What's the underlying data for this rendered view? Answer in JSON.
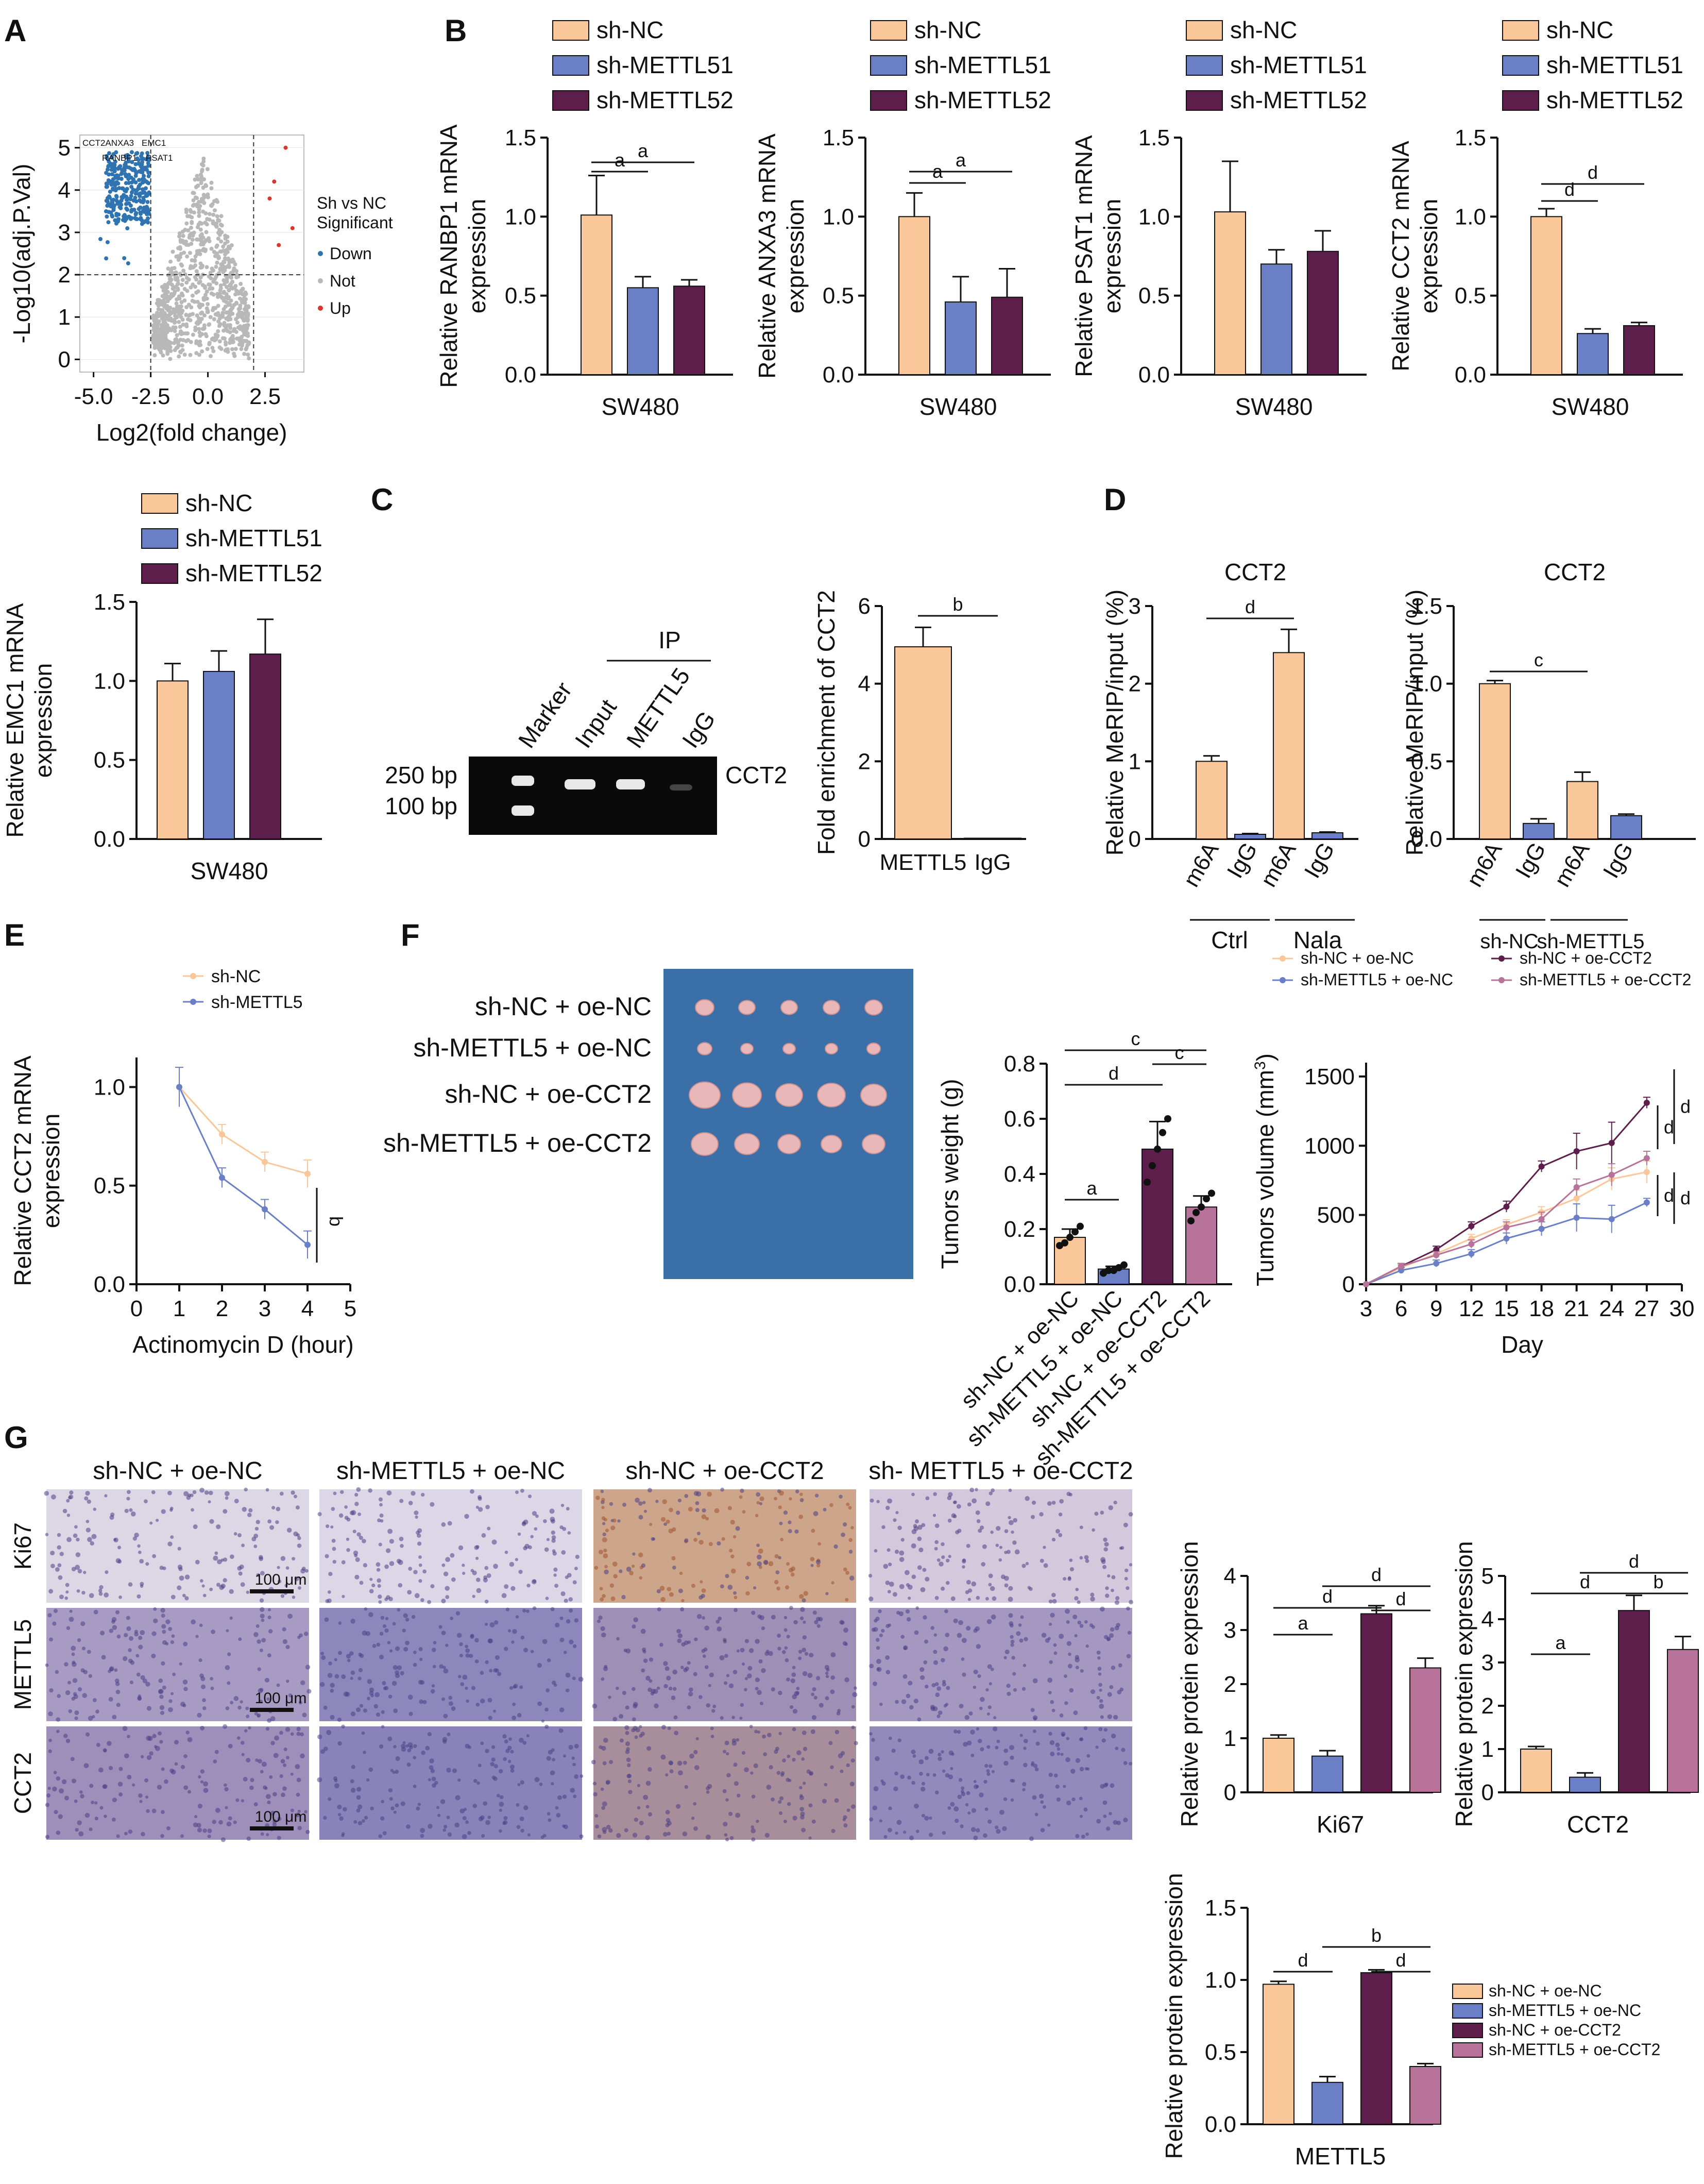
{
  "panel_letters": [
    "A",
    "B",
    "C",
    "D",
    "E",
    "F",
    "G"
  ],
  "colors": {
    "shNC": "#F9C79A",
    "shM1": "#6A7FC6",
    "shM2": "#5E1E4B",
    "oeNC_sh": "#6A7FC6",
    "oeCCT2": "#5E1E4B",
    "shM_oeCCT2": "#B8739A",
    "volcano_down": "#2F73B0",
    "volcano_not": "#B8B8B8",
    "volcano_up": "#D6382E"
  },
  "group_legend_3": [
    "sh-NC",
    "sh-METTL51",
    "sh-METTL52"
  ],
  "group_legend_4": [
    "sh-NC + oe-NC",
    "sh-METTL5 + oe-NC",
    "sh-NC + oe-CCT2",
    "sh-METTL5 + oe-CCT2"
  ],
  "chart_data": [
    {
      "id": "A",
      "type": "scatter",
      "xlabel": "Log2(fold change)",
      "ylabel": "-Log10(adj.P.Val)",
      "xticks": [
        "-5.0",
        "-2.5",
        "0.0",
        "2.5"
      ],
      "yticks": [
        "0",
        "1",
        "2",
        "3",
        "4",
        "5"
      ],
      "xlim": [
        -5.6,
        4.2
      ],
      "ylim": [
        -0.3,
        5.3
      ],
      "legend_title": [
        "Sh vs NC",
        "Significant"
      ],
      "legend": [
        "Down",
        "Not",
        "Up"
      ],
      "gene_labels": [
        "CCT2ANXA3",
        "EMC1",
        "RANBP1",
        "PSAT1"
      ]
    },
    {
      "id": "B1",
      "type": "bar",
      "ylabel": [
        "Relative RANBP1 mRNA",
        "expression"
      ],
      "xlabel": "SW480",
      "yticks": [
        "0.0",
        "0.5",
        "1.0",
        "1.5"
      ],
      "ylim": [
        0,
        1.5
      ],
      "values": [
        1.01,
        0.55,
        0.56
      ],
      "errors": [
        0.25,
        0.07,
        0.04
      ],
      "sig": [
        {
          "a": 0,
          "b": 1,
          "label": "a"
        },
        {
          "a": 0,
          "b": 2,
          "label": "a"
        }
      ]
    },
    {
      "id": "B2",
      "type": "bar",
      "ylabel": [
        "Relative ANXA3 mRNA",
        "expression"
      ],
      "xlabel": "SW480",
      "yticks": [
        "0.0",
        "0.5",
        "1.0",
        "1.5"
      ],
      "ylim": [
        0,
        1.5
      ],
      "values": [
        1.0,
        0.46,
        0.49
      ],
      "errors": [
        0.15,
        0.16,
        0.18
      ],
      "sig": [
        {
          "a": 0,
          "b": 1,
          "label": "a"
        },
        {
          "a": 0,
          "b": 2,
          "label": "a"
        }
      ]
    },
    {
      "id": "B3",
      "type": "bar",
      "ylabel": [
        "Relative PSAT1 mRNA",
        "expression"
      ],
      "xlabel": "SW480",
      "yticks": [
        "0.0",
        "0.5",
        "1.0",
        "1.5"
      ],
      "ylim": [
        0,
        1.5
      ],
      "values": [
        1.03,
        0.7,
        0.78
      ],
      "errors": [
        0.32,
        0.09,
        0.13
      ],
      "sig": []
    },
    {
      "id": "B4",
      "type": "bar",
      "ylabel": [
        "Relative CCT2 mRNA",
        "expression"
      ],
      "xlabel": "SW480",
      "yticks": [
        "0.0",
        "0.5",
        "1.0",
        "1.5"
      ],
      "ylim": [
        0,
        1.5
      ],
      "values": [
        1.0,
        0.26,
        0.31
      ],
      "errors": [
        0.05,
        0.03,
        0.02
      ],
      "sig": [
        {
          "a": 0,
          "b": 1,
          "label": "d"
        },
        {
          "a": 0,
          "b": 2,
          "label": "d"
        }
      ]
    },
    {
      "id": "B5",
      "type": "bar",
      "ylabel": [
        "Relative EMC1 mRNA",
        "expression"
      ],
      "xlabel": "SW480",
      "yticks": [
        "0.0",
        "0.5",
        "1.0",
        "1.5"
      ],
      "ylim": [
        0,
        1.5
      ],
      "values": [
        1.0,
        1.06,
        1.17
      ],
      "errors": [
        0.11,
        0.13,
        0.22
      ],
      "sig": []
    },
    {
      "id": "C",
      "type": "bar",
      "ylabel": "Fold enrichment of CCT2",
      "categories": [
        "METTL5",
        "IgG"
      ],
      "yticks": [
        "0",
        "2",
        "4",
        "6"
      ],
      "ylim": [
        0,
        6
      ],
      "values": [
        4.95,
        0.02
      ],
      "errors": [
        0.5,
        0.0
      ],
      "sig": [
        {
          "a": 0,
          "b": 1,
          "label": "b"
        }
      ]
    },
    {
      "id": "D1",
      "type": "bar",
      "title": "CCT2",
      "ylabel": "Relative MeRIP/input (%)",
      "categories": [
        "m6A",
        "IgG",
        "m6A",
        "IgG"
      ],
      "groups": [
        "Ctrl",
        "Nala"
      ],
      "yticks": [
        "0",
        "1",
        "2",
        "3"
      ],
      "ylim": [
        0,
        3
      ],
      "values": [
        1.0,
        0.06,
        2.4,
        0.08
      ],
      "errors": [
        0.07,
        0.01,
        0.3,
        0.01
      ],
      "sig": [
        {
          "a": 0,
          "b": 2,
          "label": "d"
        }
      ]
    },
    {
      "id": "D2",
      "type": "bar",
      "title": "CCT2",
      "ylabel": "Relative MeRIP/input (%)",
      "categories": [
        "m6A",
        "IgG",
        "m6A",
        "IgG"
      ],
      "groups": [
        "sh-NC",
        "sh-METTL5"
      ],
      "yticks": [
        "0.0",
        "0.5",
        "1.0",
        "1.5"
      ],
      "ylim": [
        0,
        1.5
      ],
      "values": [
        1.0,
        0.1,
        0.37,
        0.15
      ],
      "errors": [
        0.02,
        0.03,
        0.06,
        0.01
      ],
      "sig": [
        {
          "a": 0,
          "b": 2,
          "label": "c"
        }
      ]
    },
    {
      "id": "E",
      "type": "line",
      "ylabel": [
        "Relative CCT2 mRNA",
        "expression"
      ],
      "xlabel": "Actinomycin D (hour)",
      "xticks": [
        "0",
        "1",
        "2",
        "3",
        "4",
        "5"
      ],
      "yticks": [
        "0.0",
        "0.5",
        "1.0"
      ],
      "xlim": [
        0,
        5
      ],
      "ylim": [
        0,
        1.15
      ],
      "series": [
        {
          "name": "sh-NC",
          "x": [
            1,
            2,
            3,
            4
          ],
          "y": [
            1.0,
            0.76,
            0.62,
            0.56
          ],
          "err": [
            0.1,
            0.05,
            0.05,
            0.07
          ]
        },
        {
          "name": "sh-METTL5",
          "x": [
            1,
            2,
            3,
            4
          ],
          "y": [
            1.0,
            0.54,
            0.38,
            0.2
          ],
          "err": [
            0.1,
            0.05,
            0.05,
            0.07
          ]
        }
      ],
      "sig": "b"
    },
    {
      "id": "F_image_labels",
      "rows": [
        "sh-NC + oe-NC",
        "sh-METTL5 + oe-NC",
        "sh-NC + oe-CCT2",
        "sh-METTL5 + oe-CCT2"
      ]
    },
    {
      "id": "F1",
      "type": "bar",
      "ylabel": "Tumors weight (g)",
      "categories": [
        "sh-NC + oe-NC",
        "sh-METTL5 + oe-NC",
        "sh-NC + oe-CCT2",
        "sh-METTL5 + oe-CCT2"
      ],
      "yticks": [
        "0.0",
        "0.2",
        "0.4",
        "0.6",
        "0.8"
      ],
      "ylim": [
        0,
        0.8
      ],
      "values": [
        0.17,
        0.055,
        0.49,
        0.28
      ],
      "errors": [
        0.03,
        0.01,
        0.1,
        0.04
      ],
      "points": [
        [
          0.14,
          0.15,
          0.17,
          0.19,
          0.21
        ],
        [
          0.04,
          0.05,
          0.05,
          0.06,
          0.07
        ],
        [
          0.37,
          0.43,
          0.49,
          0.55,
          0.6
        ],
        [
          0.23,
          0.26,
          0.28,
          0.31,
          0.33
        ]
      ],
      "sig": [
        {
          "a": 0,
          "b": 1,
          "label": "a"
        },
        {
          "a": 0,
          "b": 2,
          "label": "d"
        },
        {
          "a": 2,
          "b": 3,
          "label": "c"
        },
        {
          "a": 0,
          "b": 3,
          "label": "c"
        }
      ]
    },
    {
      "id": "F2",
      "type": "line",
      "ylabel": "Tumors volume (mm3)",
      "xlabel": "Day",
      "xticks": [
        "3",
        "6",
        "9",
        "12",
        "15",
        "18",
        "21",
        "24",
        "27",
        "30"
      ],
      "yticks": [
        "0",
        "500",
        "1000",
        "1500"
      ],
      "xlim": [
        3,
        30
      ],
      "ylim": [
        0,
        1600
      ],
      "series": [
        {
          "name": "sh-NC + oe-NC",
          "x": [
            3,
            6,
            9,
            12,
            15,
            18,
            21,
            24,
            27
          ],
          "y": [
            0,
            120,
            220,
            330,
            430,
            520,
            620,
            760,
            810
          ],
          "err": [
            0,
            20,
            25,
            30,
            35,
            40,
            60,
            80,
            80
          ]
        },
        {
          "name": "sh-METTL5 + oe-NC",
          "x": [
            3,
            6,
            9,
            12,
            15,
            18,
            21,
            24,
            27
          ],
          "y": [
            0,
            100,
            150,
            220,
            330,
            400,
            480,
            470,
            590
          ],
          "err": [
            0,
            20,
            25,
            30,
            40,
            50,
            100,
            100,
            30
          ]
        },
        {
          "name": "sh-NC + oe-CCT2",
          "x": [
            3,
            6,
            9,
            12,
            15,
            18,
            21,
            24,
            27
          ],
          "y": [
            0,
            130,
            250,
            420,
            560,
            850,
            960,
            1020,
            1310
          ],
          "err": [
            0,
            20,
            25,
            30,
            40,
            40,
            130,
            150,
            40
          ]
        },
        {
          "name": "sh-METTL5 + oe-CCT2",
          "x": [
            3,
            6,
            9,
            12,
            15,
            18,
            21,
            24,
            27
          ],
          "y": [
            0,
            130,
            210,
            290,
            410,
            470,
            700,
            790,
            910
          ],
          "err": [
            0,
            20,
            25,
            30,
            40,
            50,
            60,
            80,
            50
          ]
        }
      ],
      "sig": [
        "d",
        "d",
        "d",
        "d"
      ]
    },
    {
      "id": "G_ihc",
      "columns": [
        "sh-NC + oe-NC",
        "sh-METTL5 + oe-NC",
        "sh-NC + oe-CCT2",
        "sh- METTL5 + oe-CCT2"
      ],
      "rows": [
        "Ki67",
        "METTL5",
        "CCT2"
      ],
      "scale": "100 μm"
    },
    {
      "id": "G1",
      "type": "bar",
      "ylabel": "Relative protein expression",
      "xlabel": "Ki67",
      "yticks": [
        "0",
        "1",
        "2",
        "3",
        "4"
      ],
      "ylim": [
        0,
        4
      ],
      "values": [
        1.0,
        0.67,
        3.3,
        2.3
      ],
      "errors": [
        0.06,
        0.1,
        0.15,
        0.18
      ],
      "sig": [
        {
          "a": 0,
          "b": 1,
          "label": "a"
        },
        {
          "a": 0,
          "b": 2,
          "label": "d"
        },
        {
          "a": 2,
          "b": 3,
          "label": "d"
        },
        {
          "a": 1,
          "b": 3,
          "label": "d"
        }
      ]
    },
    {
      "id": "G2",
      "type": "bar",
      "ylabel": "Relative protein expression",
      "xlabel": "CCT2",
      "yticks": [
        "0",
        "1",
        "2",
        "3",
        "4",
        "5"
      ],
      "ylim": [
        0,
        5
      ],
      "values": [
        1.0,
        0.35,
        4.2,
        3.3
      ],
      "errors": [
        0.06,
        0.1,
        0.35,
        0.3
      ],
      "sig": [
        {
          "a": 0,
          "b": 1,
          "label": "a"
        },
        {
          "a": 0,
          "b": 2,
          "label": "d"
        },
        {
          "a": 2,
          "b": 3,
          "label": "b"
        },
        {
          "a": 1,
          "b": 3,
          "label": "d"
        }
      ]
    },
    {
      "id": "G3",
      "type": "bar",
      "ylabel": "Relative protein expression",
      "xlabel": "METTL5",
      "yticks": [
        "0.0",
        "0.5",
        "1.0",
        "1.5"
      ],
      "ylim": [
        0,
        1.5
      ],
      "values": [
        0.97,
        0.29,
        1.05,
        0.4
      ],
      "errors": [
        0.02,
        0.04,
        0.02,
        0.02
      ],
      "sig": [
        {
          "a": 0,
          "b": 1,
          "label": "d"
        },
        {
          "a": 2,
          "b": 3,
          "label": "d"
        },
        {
          "a": 1,
          "b": 3,
          "label": "b"
        }
      ]
    }
  ],
  "gel": {
    "lanes": [
      "Marker",
      "Input",
      "METTL5",
      "IgG"
    ],
    "ip_label": "IP",
    "sizes": [
      "250 bp",
      "100 bp"
    ],
    "band": "CCT2"
  },
  "legend_G": [
    "sh-NC + oe-NC",
    "sh-METTL5 + oe-NC",
    "sh-NC + oe-CCT2",
    "sh-METTL5 + oe-CCT2"
  ]
}
